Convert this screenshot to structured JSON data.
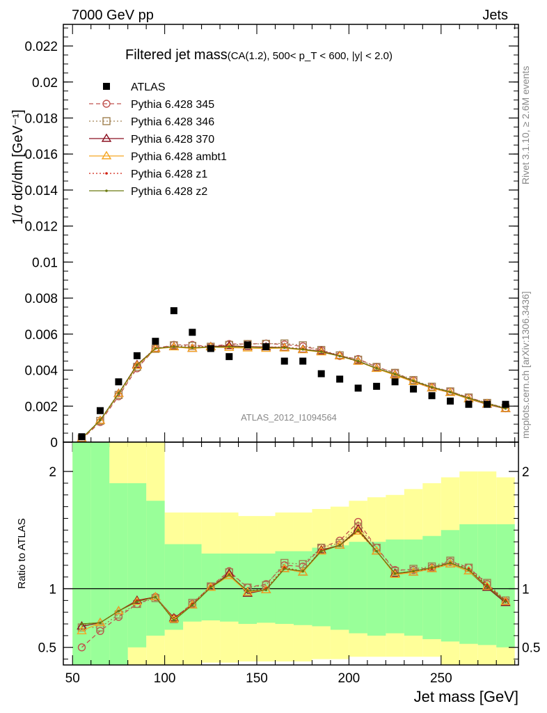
{
  "header": {
    "left": "7000 GeV pp",
    "right": "Jets"
  },
  "side_text": {
    "rivet": "Rivet 3.1.10, ≥ 2.6M events",
    "mcplots": "mcplots.cern.ch [arXiv:1306.3436]"
  },
  "watermark": "ATLAS_2012_I1094564",
  "chart_data": [
    {
      "type": "scatter",
      "panel": "main",
      "title": "Filtered jet mass",
      "subtitle": "(CA(1.2), 500< p_T < 600, |y| < 2.0)",
      "ylabel": "1/σ dσ/dm [GeV⁻¹]",
      "xlabel": "",
      "xlim": [
        45,
        292
      ],
      "ylim": [
        0,
        0.0232
      ],
      "y_ticks": [
        "0",
        "0.002",
        "0.004",
        "0.006",
        "0.008",
        "0.01",
        "0.012",
        "0.014",
        "0.016",
        "0.018",
        "0.02",
        "0.022"
      ],
      "x": [
        55,
        65,
        75,
        85,
        95,
        105,
        115,
        125,
        135,
        145,
        155,
        165,
        175,
        185,
        195,
        205,
        215,
        225,
        235,
        245,
        255,
        265,
        275,
        285
      ],
      "legend_position": "top-left",
      "series": [
        {
          "name": "ATLAS",
          "color": "#000000",
          "marker": "square",
          "line": "none",
          "values": [
            0.0003,
            0.00175,
            0.00335,
            0.0048,
            0.0056,
            0.0073,
            0.0061,
            0.0052,
            0.00475,
            0.0054,
            0.0053,
            0.0045,
            0.0045,
            0.0038,
            0.0035,
            0.003,
            0.0031,
            0.00335,
            0.00295,
            0.00258,
            0.00228,
            0.0021,
            0.0021,
            0.0021
          ]
        },
        {
          "name": "Pythia 6.428 345",
          "color": "#c0504d",
          "marker": "circle",
          "line": "dashed",
          "values": [
            0.00015,
            0.00112,
            0.00255,
            0.0041,
            0.0052,
            0.0054,
            0.0054,
            0.0053,
            0.00545,
            0.00545,
            0.00548,
            0.00542,
            0.00532,
            0.0051,
            0.00478,
            0.00462,
            0.00418,
            0.00385,
            0.00342,
            0.00305,
            0.00282,
            0.00248,
            0.00218,
            0.00188
          ]
        },
        {
          "name": "Pythia 6.428 346",
          "color": "#a08050",
          "marker": "square-open",
          "line": "dotted",
          "values": [
            0.0002,
            0.00118,
            0.00262,
            0.00418,
            0.00518,
            0.00538,
            0.00535,
            0.0053,
            0.0054,
            0.00545,
            0.00546,
            0.00548,
            0.00538,
            0.00512,
            0.00482,
            0.00458,
            0.00418,
            0.00385,
            0.00345,
            0.00308,
            0.00282,
            0.00248,
            0.00218,
            0.0019
          ]
        },
        {
          "name": "Pythia 6.428 370",
          "color": "#8b1020",
          "marker": "triangle-open",
          "line": "solid",
          "values": [
            0.0002,
            0.0012,
            0.0027,
            0.0043,
            0.0052,
            0.0053,
            0.0052,
            0.0053,
            0.00535,
            0.0053,
            0.00528,
            0.00525,
            0.00515,
            0.00505,
            0.0048,
            0.0045,
            0.0041,
            0.00375,
            0.00335,
            0.003,
            0.00275,
            0.0024,
            0.0021,
            0.00185
          ]
        },
        {
          "name": "Pythia 6.428 ambt1",
          "color": "#f5a623",
          "marker": "triangle-open",
          "line": "solid",
          "values": [
            0.00019,
            0.0012,
            0.00268,
            0.00425,
            0.00518,
            0.00528,
            0.0052,
            0.00528,
            0.00525,
            0.00522,
            0.0052,
            0.00522,
            0.00512,
            0.005,
            0.00478,
            0.00448,
            0.00408,
            0.00372,
            0.00335,
            0.003,
            0.00275,
            0.0024,
            0.00212,
            0.00186
          ]
        },
        {
          "name": "Pythia 6.428 z1",
          "color": "#d02010",
          "marker": "dot",
          "line": "dotted",
          "values": [
            0.00021,
            0.00122,
            0.00272,
            0.0043,
            0.00522,
            0.00532,
            0.00528,
            0.0053,
            0.00532,
            0.0053,
            0.00528,
            0.00528,
            0.00518,
            0.00505,
            0.00478,
            0.00448,
            0.0041,
            0.00378,
            0.00338,
            0.00302,
            0.00278,
            0.00245,
            0.00215,
            0.00188
          ]
        },
        {
          "name": "Pythia 6.428 z2",
          "color": "#6b7a10",
          "marker": "dot",
          "line": "solid",
          "values": [
            0.00021,
            0.00122,
            0.0027,
            0.00428,
            0.0052,
            0.0053,
            0.00525,
            0.00528,
            0.0053,
            0.00528,
            0.00525,
            0.00525,
            0.00515,
            0.00502,
            0.00478,
            0.0045,
            0.0041,
            0.00378,
            0.0034,
            0.00305,
            0.00278,
            0.00244,
            0.00214,
            0.00187
          ]
        }
      ]
    },
    {
      "type": "line",
      "panel": "ratio",
      "ylabel": "Ratio to ATLAS",
      "xlabel": "Jet mass [GeV]",
      "xlim": [
        45,
        292
      ],
      "ylim": [
        0.35,
        2.25
      ],
      "x_ticks": [
        50,
        100,
        150,
        200,
        250
      ],
      "y_ticks": [
        "0.5",
        "1",
        "2"
      ],
      "reference_line": 1,
      "band_edges": [
        50,
        60,
        70,
        80,
        90,
        100,
        110,
        120,
        130,
        140,
        150,
        160,
        170,
        180,
        190,
        200,
        210,
        220,
        230,
        240,
        250,
        260,
        270,
        280,
        290
      ],
      "bands": [
        {
          "name": "green",
          "color": "#99ff99",
          "lo": [
            0.35,
            0.35,
            0.35,
            0.5,
            0.6,
            0.65,
            0.72,
            0.73,
            0.72,
            0.7,
            0.71,
            0.7,
            0.69,
            0.68,
            0.65,
            0.62,
            0.6,
            0.62,
            0.6,
            0.57,
            0.55,
            0.53,
            0.52,
            0.5
          ],
          "hi": [
            2.25,
            2.25,
            1.9,
            1.9,
            1.75,
            1.38,
            1.38,
            1.3,
            1.3,
            1.3,
            1.3,
            1.32,
            1.32,
            1.35,
            1.37,
            1.4,
            1.4,
            1.42,
            1.42,
            1.45,
            1.5,
            1.55,
            1.55,
            1.55
          ]
        },
        {
          "name": "yellow",
          "color": "#ffff99",
          "lo": [
            0.35,
            0.35,
            0.35,
            0.35,
            0.35,
            0.35,
            0.35,
            0.37,
            0.37,
            0.38,
            0.38,
            0.38,
            0.38,
            0.4,
            0.4,
            0.42,
            0.42,
            0.42,
            0.42,
            0.42,
            0.35,
            0.35,
            0.35,
            0.35
          ],
          "hi": [
            2.25,
            2.25,
            2.25,
            2.25,
            2.25,
            1.65,
            1.65,
            1.65,
            1.65,
            1.62,
            1.62,
            1.65,
            1.65,
            1.68,
            1.7,
            1.75,
            1.78,
            1.8,
            1.85,
            1.9,
            1.95,
            2.0,
            2.0,
            1.95
          ]
        }
      ],
      "x": [
        55,
        65,
        75,
        85,
        95,
        105,
        115,
        125,
        135,
        145,
        155,
        165,
        175,
        185,
        195,
        205,
        215,
        225,
        235,
        245,
        255,
        265,
        275,
        285
      ],
      "series": [
        {
          "name": "Pythia 6.428 345",
          "color": "#c0504d",
          "marker": "circle",
          "line": "dashed",
          "values": [
            0.5,
            0.64,
            0.76,
            0.87,
            0.93,
            0.75,
            0.87,
            1.02,
            1.15,
            1.01,
            1.04,
            1.2,
            1.19,
            1.35,
            1.41,
            1.57,
            1.35,
            1.16,
            1.16,
            1.18,
            1.23,
            1.18,
            1.04,
            0.89
          ]
        },
        {
          "name": "Pythia 6.428 346",
          "color": "#a08050",
          "marker": "square-open",
          "line": "dotted",
          "values": [
            0.67,
            0.67,
            0.78,
            0.87,
            0.92,
            0.74,
            0.88,
            1.02,
            1.14,
            1.01,
            1.03,
            1.22,
            1.21,
            1.35,
            1.39,
            1.53,
            1.35,
            1.15,
            1.17,
            1.19,
            1.24,
            1.18,
            1.05,
            0.9
          ]
        },
        {
          "name": "Pythia 6.428 370",
          "color": "#8b1020",
          "marker": "triangle-open",
          "line": "solid",
          "values": [
            0.68,
            0.71,
            0.81,
            0.9,
            0.93,
            0.75,
            0.86,
            1.01,
            1.13,
            0.96,
            0.99,
            1.17,
            1.14,
            1.33,
            1.37,
            1.51,
            1.32,
            1.13,
            1.14,
            1.17,
            1.21,
            1.15,
            1.01,
            0.88
          ]
        },
        {
          "name": "Pythia 6.428 ambt1",
          "color": "#f5a623",
          "marker": "triangle-open",
          "line": "solid",
          "values": [
            0.64,
            0.71,
            0.81,
            0.89,
            0.93,
            0.74,
            0.86,
            1.01,
            1.11,
            0.97,
            0.99,
            1.17,
            1.14,
            1.32,
            1.37,
            1.49,
            1.32,
            1.12,
            1.14,
            1.17,
            1.21,
            1.15,
            1.02,
            0.89
          ]
        },
        {
          "name": "Pythia 6.428 z1",
          "color": "#d02010",
          "marker": "dot",
          "line": "dotted",
          "values": [
            0.7,
            0.71,
            0.81,
            0.9,
            0.93,
            0.73,
            0.87,
            1.02,
            1.12,
            0.98,
            1.0,
            1.18,
            1.15,
            1.33,
            1.37,
            1.49,
            1.32,
            1.13,
            1.15,
            1.17,
            1.22,
            1.17,
            1.03,
            0.9
          ]
        },
        {
          "name": "Pythia 6.428 z2",
          "color": "#6b7a10",
          "marker": "dot",
          "line": "solid",
          "values": [
            0.7,
            0.71,
            0.81,
            0.89,
            0.93,
            0.73,
            0.86,
            1.01,
            1.12,
            0.98,
            0.99,
            1.17,
            1.15,
            1.32,
            1.37,
            1.5,
            1.32,
            1.13,
            1.15,
            1.18,
            1.22,
            1.16,
            1.02,
            0.89
          ]
        }
      ]
    }
  ]
}
